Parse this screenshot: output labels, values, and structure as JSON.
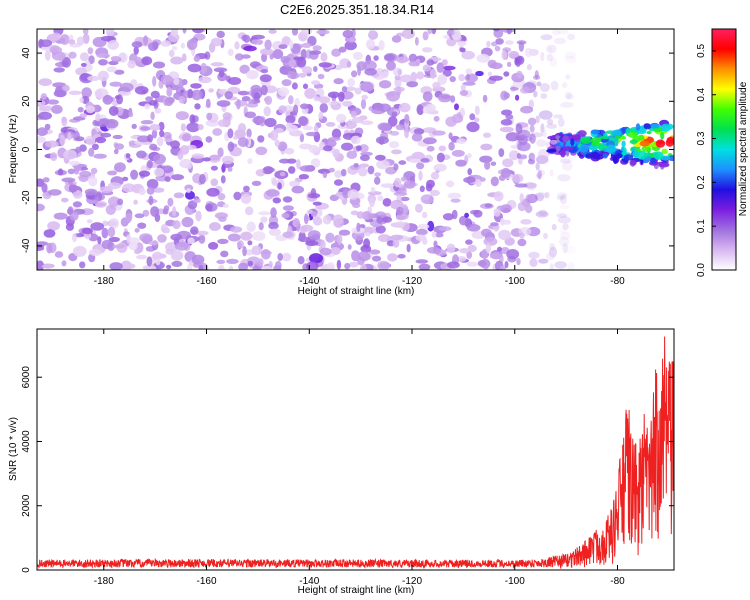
{
  "title": "C2E6.2025.351.18.34.R14",
  "chart_data": [
    {
      "type": "heatmap",
      "xlabel": "Height of straight line (km)",
      "ylabel": "Frequency (Hz)",
      "xlim": [
        -193,
        -69
      ],
      "ylim": [
        -50,
        50
      ],
      "xticks": [
        -180,
        -160,
        -140,
        -120,
        -100,
        -80
      ],
      "yticks": [
        -40,
        -20,
        0,
        20,
        40
      ],
      "colorbar": {
        "label": "Normalized spectral amplitude",
        "range": [
          0.0,
          0.55
        ],
        "ticks": [
          0.0,
          0.1,
          0.2,
          0.3,
          0.4,
          0.5
        ],
        "tick_labels": [
          "0.0",
          "0.1",
          "0.2",
          "0.3",
          "0.4",
          "0.5"
        ],
        "colormap": [
          "#ffffff",
          "#d8b8f0",
          "#a070e0",
          "#7a1ee0",
          "#2010e0",
          "#1e90ff",
          "#00e0e0",
          "#00e050",
          "#40ff00",
          "#ffff00",
          "#ff9000",
          "#ff0000",
          "#ff2060"
        ]
      },
      "features": [
        {
          "x_range": [
            -193,
            -93
          ],
          "y_range": [
            -50,
            50
          ],
          "typical_amplitude": 0.07,
          "description_value": "noise"
        },
        {
          "x_range": [
            -93,
            -69
          ],
          "y_range": [
            -10,
            10
          ],
          "peak_amplitude": 0.52,
          "center_frequency": 2
        }
      ]
    },
    {
      "type": "line",
      "xlabel": "Height of straight line (km)",
      "ylabel": "SNR (10 * v/v)",
      "xlim": [
        -193,
        -69
      ],
      "ylim": [
        0,
        7500
      ],
      "xticks": [
        -180,
        -160,
        -140,
        -120,
        -100,
        -80
      ],
      "yticks": [
        0,
        2000,
        4000,
        6000
      ],
      "color": "#ee2020",
      "series": [
        {
          "name": "SNR",
          "x": [
            -193,
            -180,
            -160,
            -140,
            -120,
            -100,
            -95,
            -90,
            -87,
            -85,
            -83,
            -81,
            -80,
            -79,
            -78,
            -77,
            -76,
            -75,
            -74,
            -73,
            -72,
            -71,
            -70
          ],
          "envelope_max": [
            320,
            330,
            340,
            330,
            320,
            320,
            360,
            500,
            800,
            1200,
            1400,
            2000,
            3000,
            4200,
            5400,
            4200,
            3800,
            5000,
            4500,
            5500,
            7500,
            7500,
            6500
          ]
        }
      ]
    }
  ]
}
